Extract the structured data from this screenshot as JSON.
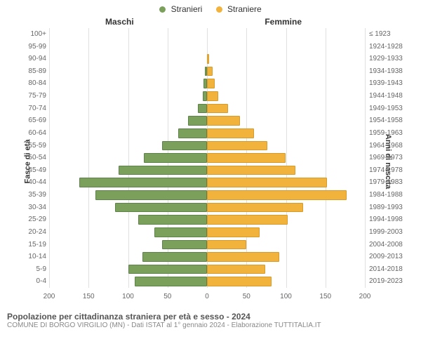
{
  "legend": {
    "male": {
      "label": "Stranieri",
      "color": "#7ba05b"
    },
    "female": {
      "label": "Straniere",
      "color": "#f2b33d"
    }
  },
  "columns": {
    "male": "Maschi",
    "female": "Femmine"
  },
  "axis_titles": {
    "left": "Fasce di età",
    "right": "Anni di nascita"
  },
  "chart": {
    "type": "pyramid",
    "xmax": 200,
    "xticks": [
      0,
      50,
      100,
      150,
      200
    ],
    "grid_color": "#e0e0e0",
    "center_color": "#666666",
    "male_color": "#7ba05b",
    "female_color": "#f2b33d",
    "male_border": "#5d824a",
    "female_border": "#d89a2a",
    "background": "#ffffff",
    "rows": [
      {
        "age": "100+",
        "birth": "≤ 1923",
        "m": 0,
        "f": 0
      },
      {
        "age": "95-99",
        "birth": "1924-1928",
        "m": 0,
        "f": 0
      },
      {
        "age": "90-94",
        "birth": "1929-1933",
        "m": 0,
        "f": 1
      },
      {
        "age": "85-89",
        "birth": "1934-1938",
        "m": 1,
        "f": 5
      },
      {
        "age": "80-84",
        "birth": "1939-1943",
        "m": 3,
        "f": 8
      },
      {
        "age": "75-79",
        "birth": "1944-1948",
        "m": 4,
        "f": 12
      },
      {
        "age": "70-74",
        "birth": "1949-1953",
        "m": 10,
        "f": 25
      },
      {
        "age": "65-69",
        "birth": "1954-1958",
        "m": 22,
        "f": 40
      },
      {
        "age": "60-64",
        "birth": "1959-1963",
        "m": 35,
        "f": 58
      },
      {
        "age": "55-59",
        "birth": "1964-1968",
        "m": 55,
        "f": 75
      },
      {
        "age": "50-54",
        "birth": "1969-1973",
        "m": 78,
        "f": 98
      },
      {
        "age": "45-49",
        "birth": "1974-1978",
        "m": 110,
        "f": 110
      },
      {
        "age": "40-44",
        "birth": "1979-1983",
        "m": 160,
        "f": 150
      },
      {
        "age": "35-39",
        "birth": "1984-1988",
        "m": 140,
        "f": 175
      },
      {
        "age": "30-34",
        "birth": "1989-1993",
        "m": 115,
        "f": 120
      },
      {
        "age": "25-29",
        "birth": "1994-1998",
        "m": 85,
        "f": 100
      },
      {
        "age": "20-24",
        "birth": "1999-2003",
        "m": 65,
        "f": 65
      },
      {
        "age": "15-19",
        "birth": "2004-2008",
        "m": 55,
        "f": 48
      },
      {
        "age": "10-14",
        "birth": "2009-2013",
        "m": 80,
        "f": 90
      },
      {
        "age": "5-9",
        "birth": "2014-2018",
        "m": 98,
        "f": 72
      },
      {
        "age": "0-4",
        "birth": "2019-2023",
        "m": 90,
        "f": 80
      }
    ]
  },
  "footer": {
    "title": "Popolazione per cittadinanza straniera per età e sesso - 2024",
    "subtitle": "COMUNE DI BORGO VIRGILIO (MN) - Dati ISTAT al 1° gennaio 2024 - Elaborazione TUTTITALIA.IT"
  }
}
